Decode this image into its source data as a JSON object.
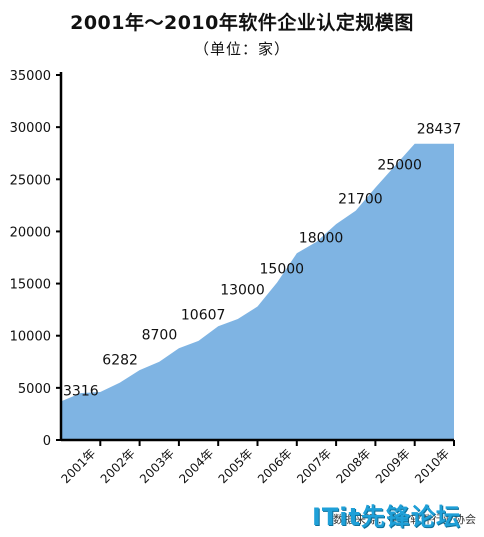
{
  "chart_data": {
    "type": "area",
    "title": "2001年～2010年软件企业认定规模图",
    "subtitle": "（单位：家）",
    "xlabel": "",
    "ylabel": "",
    "categories": [
      "2001年",
      "2002年",
      "2003年",
      "2004年",
      "2005年",
      "2006年",
      "2007年",
      "2008年",
      "2009年",
      "2010年"
    ],
    "point_labels": [
      "3316",
      "6282",
      "8700",
      "10607",
      "13000",
      "15000",
      "18000",
      "21700",
      "25000",
      "28437"
    ],
    "values": [
      3316,
      6282,
      8700,
      10607,
      13000,
      15000,
      18000,
      21700,
      25000,
      28437
    ],
    "curve": [
      {
        "x": 0.0,
        "y": 3700
      },
      {
        "x": 0.5,
        "y": 4500
      },
      {
        "x": 1.0,
        "y": 4600
      },
      {
        "x": 1.5,
        "y": 5500
      },
      {
        "x": 2.0,
        "y": 6700
      },
      {
        "x": 2.5,
        "y": 7500
      },
      {
        "x": 3.0,
        "y": 8800
      },
      {
        "x": 3.5,
        "y": 9500
      },
      {
        "x": 4.0,
        "y": 10900
      },
      {
        "x": 4.5,
        "y": 11600
      },
      {
        "x": 5.0,
        "y": 12800
      },
      {
        "x": 5.5,
        "y": 15100
      },
      {
        "x": 6.0,
        "y": 17900
      },
      {
        "x": 6.5,
        "y": 19000
      },
      {
        "x": 7.0,
        "y": 20700
      },
      {
        "x": 7.5,
        "y": 22000
      },
      {
        "x": 8.0,
        "y": 24200
      },
      {
        "x": 8.5,
        "y": 26300
      },
      {
        "x": 9.0,
        "y": 28400
      }
    ],
    "yticks": [
      0,
      5000,
      10000,
      15000,
      20000,
      25000,
      30000,
      35000
    ],
    "ylim": [
      0,
      35000
    ],
    "grid": false,
    "fill_color": "#7fb4e3"
  },
  "footer": {
    "source_note": "数据来源：中国软件行业协会",
    "watermark": "ITit先锋论坛"
  }
}
